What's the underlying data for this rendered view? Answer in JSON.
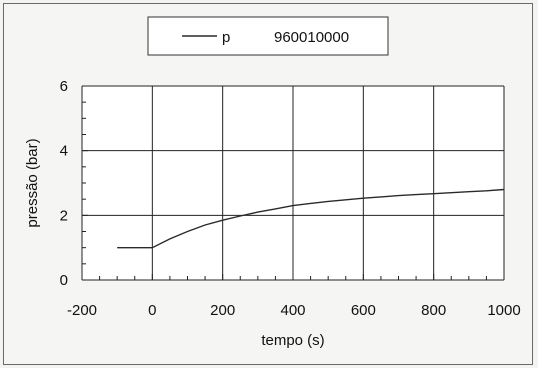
{
  "chart_data": {
    "type": "line",
    "title": "",
    "xlabel": "tempo (s)",
    "ylabel": "pressão (bar)",
    "xlim": [
      -200,
      1000
    ],
    "ylim": [
      0,
      6
    ],
    "x_ticks": [
      -200,
      0,
      200,
      400,
      600,
      800,
      1000
    ],
    "y_ticks": [
      0,
      2,
      4,
      6
    ],
    "grid": true,
    "legend_position": "top-center",
    "legend": {
      "symbol_label": "p",
      "series_label": "960010000"
    },
    "series": [
      {
        "name": "p",
        "color": "#2a2a2a",
        "x": [
          -100,
          0,
          50,
          100,
          150,
          200,
          250,
          300,
          350,
          400,
          450,
          500,
          550,
          600,
          650,
          700,
          750,
          800,
          850,
          900,
          950,
          1000
        ],
        "y": [
          1.0,
          1.0,
          1.27,
          1.5,
          1.7,
          1.85,
          1.98,
          2.1,
          2.2,
          2.3,
          2.37,
          2.43,
          2.48,
          2.53,
          2.57,
          2.61,
          2.64,
          2.67,
          2.7,
          2.73,
          2.76,
          2.8
        ]
      }
    ]
  }
}
